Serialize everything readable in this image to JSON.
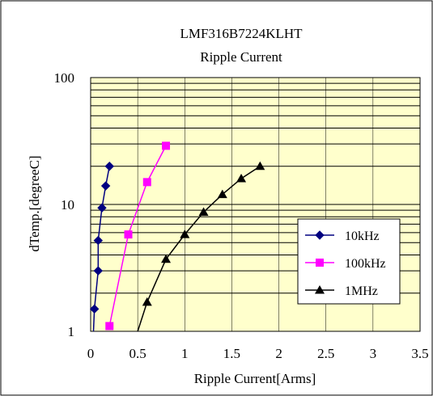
{
  "chart_data": {
    "type": "line",
    "title": "LMF316B7224KLHT",
    "subtitle": "Ripple Current",
    "xlabel": "Ripple Current[Arms]",
    "ylabel": "dTemp.[degreeC]",
    "xlim": [
      0,
      3.5
    ],
    "ylim": [
      1,
      100
    ],
    "y_scale": "log",
    "x_ticks": [
      "0",
      "0.5",
      "1",
      "1.5",
      "2",
      "2.5",
      "3",
      "3.5"
    ],
    "y_ticks": [
      "1",
      "10",
      "100"
    ],
    "grid": true,
    "plot_background": "#ffffcc",
    "legend_position": "bottom-right",
    "series": [
      {
        "name": "10kHz",
        "color": "#000080",
        "marker": "diamond",
        "x": [
          0.04,
          0.08,
          0.08,
          0.12,
          0.16,
          0.2
        ],
        "y": [
          1.5,
          3.0,
          5.2,
          9.4,
          14.0,
          20.0
        ]
      },
      {
        "name": "100kHz",
        "color": "#ff00ff",
        "marker": "square",
        "x": [
          0.2,
          0.4,
          0.6,
          0.8
        ],
        "y": [
          1.1,
          5.8,
          15.0,
          29.0
        ]
      },
      {
        "name": "1MHz",
        "color": "#000000",
        "marker": "triangle",
        "x": [
          0.6,
          0.8,
          1.0,
          1.2,
          1.4,
          1.6,
          1.8
        ],
        "y": [
          1.7,
          3.7,
          5.8,
          8.7,
          12.0,
          16.0,
          20.0
        ]
      }
    ],
    "extra_line_points": {
      "series": "1MHz",
      "x": [
        0.5
      ],
      "y": [
        1.0
      ]
    }
  }
}
